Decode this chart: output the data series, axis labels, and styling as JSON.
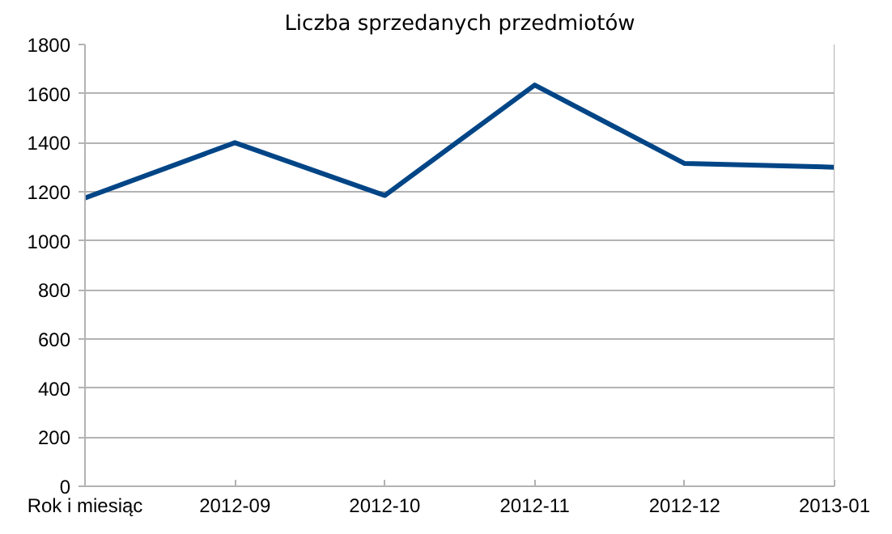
{
  "chart_data": {
    "type": "line",
    "title": "Liczba sprzedanych przedmiotów",
    "categories": [
      "Rok i miesiąc",
      "2012-09",
      "2012-10",
      "2012-11",
      "2012-12",
      "2013-01"
    ],
    "series": [
      {
        "color": "#004586",
        "values": [
          1175,
          1400,
          1185,
          1635,
          1315,
          1300
        ]
      }
    ],
    "ylim": [
      0,
      1800
    ],
    "yticks": [
      0,
      200,
      400,
      600,
      800,
      1000,
      1200,
      1400,
      1600,
      1800
    ],
    "grid": "y",
    "marker": "none",
    "line_style": "solid"
  }
}
